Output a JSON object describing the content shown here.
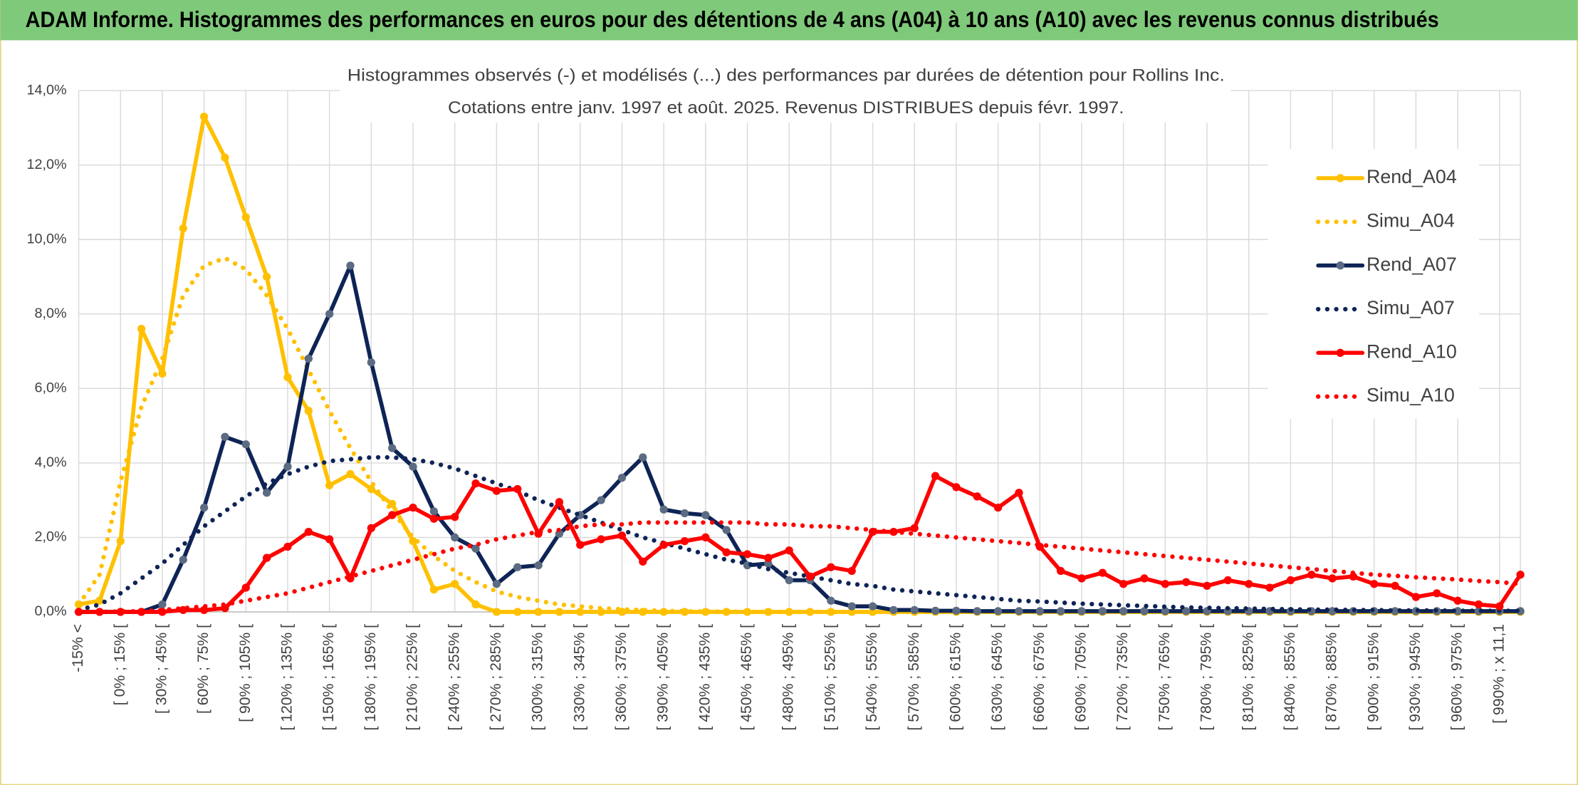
{
  "chart_data": {
    "type": "line",
    "header": "ADAM Informe. Histogrammes des performances en euros pour des détentions de 4 ans (A04) à 10 ans (A10) avec les revenus connus distribués",
    "title": "Histogrammes observés (-) et modélisés (...) des performances par durées de détention pour Rollins Inc.",
    "subtitle": "Cotations entre janv. 1997 et août. 2025. Revenus DISTRIBUES depuis févr. 1997.",
    "categories": [
      "-15% <",
      null,
      "[ 0% ; 15% [",
      null,
      "[ 30% ; 45% [",
      null,
      "[ 60% ; 75% [",
      null,
      "[ 90% ; 105% [",
      null,
      "[ 120% ; 135% [",
      null,
      "[ 150% ; 165% [",
      null,
      "[ 180% ; 195% [",
      null,
      "[ 210% ; 225% [",
      null,
      "[ 240% ; 255% [",
      null,
      "[ 270% ; 285% [",
      null,
      "[ 300% ; 315% [",
      null,
      "[ 330% ; 345% [",
      null,
      "[ 360% ; 375% [",
      null,
      "[ 390% ; 405% [",
      null,
      "[ 420% ; 435% [",
      null,
      "[ 450% ; 465% [",
      null,
      "[ 480% ; 495% [",
      null,
      "[ 510% ; 525% [",
      null,
      "[ 540% ; 555% [",
      null,
      "[ 570% ; 585% [",
      null,
      "[ 600% ; 615% [",
      null,
      "[ 630% ; 645% [",
      null,
      "[ 660% ; 675% [",
      null,
      "[ 690% ; 705% [",
      null,
      "[ 720% ; 735% [",
      null,
      "[ 750% ; 765% [",
      null,
      "[ 780% ; 795% [",
      null,
      "[ 810% ; 825% [",
      null,
      "[ 840% ; 855% [",
      null,
      "[ 870% ; 885% [",
      null,
      "[ 900% ; 915% [",
      null,
      "[ 930% ; 945% [",
      null,
      "[ 960% ; 975% [",
      null,
      "[ 990% ; x 11,1",
      null
    ],
    "ylim": [
      0,
      14
    ],
    "yticks": [
      {
        "value": 0,
        "label": "0,0%"
      },
      {
        "value": 2,
        "label": "2,0%"
      },
      {
        "value": 4,
        "label": "4,0%"
      },
      {
        "value": 6,
        "label": "6,0%"
      },
      {
        "value": 8,
        "label": "8,0%"
      },
      {
        "value": 10,
        "label": "10,0%"
      },
      {
        "value": 12,
        "label": "12,0%"
      },
      {
        "value": 14,
        "label": "14,0%"
      }
    ],
    "grid": true,
    "legend": "right",
    "series": [
      {
        "name": "Rend_A04",
        "color": "#FFC000",
        "style": "solid",
        "marker_color": "#FFC000",
        "values": [
          0.2,
          0.3,
          1.9,
          7.6,
          6.4,
          10.3,
          13.3,
          12.2,
          10.6,
          9.0,
          6.3,
          5.4,
          3.4,
          3.7,
          3.3,
          2.9,
          1.9,
          0.6,
          0.75,
          0.2,
          0,
          0,
          0,
          0,
          0,
          0,
          0,
          0,
          0,
          0,
          0,
          0,
          0,
          0,
          0,
          0,
          0,
          0,
          0,
          0,
          0,
          0,
          0,
          0,
          0,
          0,
          0,
          0,
          0,
          0,
          0,
          0,
          0,
          0,
          0,
          0,
          0,
          0,
          0,
          0,
          0,
          0,
          0,
          0,
          0,
          0,
          0,
          0,
          0,
          0
        ]
      },
      {
        "name": "Simu_A04",
        "color": "#FFC000",
        "style": "dotted",
        "values": [
          0.2,
          1.0,
          3.5,
          5.5,
          6.8,
          8.5,
          9.3,
          9.5,
          9.2,
          8.5,
          7.6,
          6.5,
          5.4,
          4.4,
          3.5,
          2.7,
          2.0,
          1.5,
          1.1,
          0.8,
          0.55,
          0.4,
          0.3,
          0.2,
          0.15,
          0.1,
          0.07,
          0.05,
          0.03,
          0.02,
          0.01,
          0.01,
          0,
          0,
          0,
          0,
          0,
          0,
          0,
          0,
          0,
          0,
          0,
          0,
          0,
          0,
          0,
          0,
          0,
          0,
          0,
          0,
          0,
          0,
          0,
          0,
          0,
          0,
          0,
          0,
          0,
          0,
          0,
          0,
          0,
          0,
          0,
          0,
          0,
          0
        ]
      },
      {
        "name": "Rend_A07",
        "color": "#0E2456",
        "style": "solid",
        "marker_color": "#5B6B82",
        "values": [
          0,
          0,
          0,
          0,
          0.2,
          1.4,
          2.8,
          4.7,
          4.5,
          3.2,
          3.9,
          6.8,
          8.0,
          9.3,
          6.7,
          4.4,
          3.9,
          2.7,
          2.0,
          1.7,
          0.75,
          1.2,
          1.25,
          2.1,
          2.6,
          3.0,
          3.6,
          4.15,
          2.75,
          2.65,
          2.6,
          2.2,
          1.25,
          1.3,
          0.85,
          0.85,
          0.3,
          0.15,
          0.15,
          0.05,
          0.05,
          0.03,
          0.03,
          0.02,
          0.02,
          0.02,
          0.02,
          0.02,
          0.02,
          0.02,
          0.02,
          0.02,
          0.02,
          0.02,
          0.02,
          0.02,
          0.02,
          0.02,
          0.02,
          0.02,
          0.02,
          0.02,
          0.02,
          0.02,
          0.02,
          0.02,
          0.02,
          0.02,
          0.02,
          0.02
        ]
      },
      {
        "name": "Simu_A07",
        "color": "#0E2456",
        "style": "dotted",
        "values": [
          0.05,
          0.2,
          0.5,
          0.9,
          1.3,
          1.8,
          2.3,
          2.7,
          3.1,
          3.45,
          3.7,
          3.9,
          4.05,
          4.1,
          4.15,
          4.15,
          4.1,
          4.0,
          3.85,
          3.65,
          3.45,
          3.25,
          3.0,
          2.8,
          2.6,
          2.4,
          2.2,
          2.0,
          1.85,
          1.7,
          1.55,
          1.4,
          1.3,
          1.15,
          1.05,
          0.95,
          0.85,
          0.75,
          0.7,
          0.6,
          0.55,
          0.5,
          0.45,
          0.4,
          0.35,
          0.3,
          0.28,
          0.25,
          0.22,
          0.2,
          0.18,
          0.16,
          0.14,
          0.12,
          0.11,
          0.1,
          0.09,
          0.08,
          0.07,
          0.06,
          0.06,
          0.05,
          0.05,
          0.04,
          0.04,
          0.04,
          0.03,
          0.03,
          0.03,
          0.03
        ]
      },
      {
        "name": "Rend_A10",
        "color": "#FF0000",
        "style": "solid",
        "marker_color": "#FF0000",
        "values": [
          0,
          0,
          0,
          0,
          0,
          0.05,
          0.05,
          0.1,
          0.65,
          1.45,
          1.75,
          2.15,
          1.95,
          0.9,
          2.25,
          2.6,
          2.8,
          2.5,
          2.55,
          3.45,
          3.25,
          3.3,
          2.1,
          2.95,
          1.8,
          1.95,
          2.05,
          1.35,
          1.8,
          1.9,
          2.0,
          1.6,
          1.55,
          1.45,
          1.65,
          0.95,
          1.2,
          1.1,
          2.15,
          2.15,
          2.25,
          3.65,
          3.35,
          3.1,
          2.8,
          3.2,
          1.75,
          1.1,
          0.9,
          1.05,
          0.75,
          0.9,
          0.75,
          0.8,
          0.7,
          0.85,
          0.75,
          0.65,
          0.85,
          1.0,
          0.9,
          0.95,
          0.75,
          0.7,
          0.4,
          0.5,
          0.3,
          0.2,
          0.15,
          1.0
        ]
      },
      {
        "name": "Simu_A10",
        "color": "#FF0000",
        "style": "dotted",
        "values": [
          0,
          0,
          0.01,
          0.02,
          0.05,
          0.1,
          0.15,
          0.2,
          0.3,
          0.4,
          0.5,
          0.65,
          0.8,
          0.95,
          1.1,
          1.25,
          1.4,
          1.55,
          1.7,
          1.8,
          1.95,
          2.05,
          2.15,
          2.2,
          2.3,
          2.35,
          2.35,
          2.4,
          2.4,
          2.4,
          2.4,
          2.4,
          2.4,
          2.35,
          2.35,
          2.3,
          2.3,
          2.25,
          2.2,
          2.15,
          2.1,
          2.05,
          2.0,
          1.95,
          1.9,
          1.85,
          1.8,
          1.75,
          1.7,
          1.65,
          1.6,
          1.55,
          1.5,
          1.45,
          1.4,
          1.35,
          1.3,
          1.25,
          1.2,
          1.15,
          1.1,
          1.05,
          1.0,
          0.97,
          0.93,
          0.9,
          0.87,
          0.83,
          0.8,
          0.75
        ]
      }
    ]
  }
}
